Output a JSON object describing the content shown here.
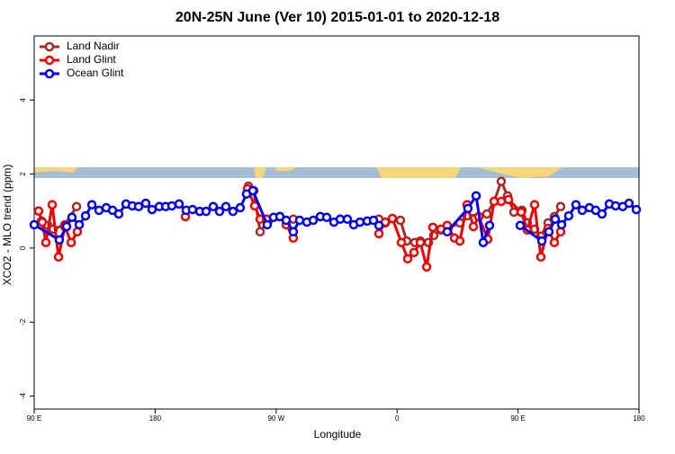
{
  "chart_data": {
    "type": "line",
    "title": "20N-25N June (Ver 10)   2015-01-01 to 2020-12-18",
    "xlabel": "Longitude",
    "ylabel": "XCO2 - MLO trend (ppm)",
    "xlim": [
      90,
      540
    ],
    "xticks": [
      {
        "value": 90,
        "label": "90 E"
      },
      {
        "value": 180,
        "label": "180"
      },
      {
        "value": 270,
        "label": "90 W"
      },
      {
        "value": 360,
        "label": "0"
      },
      {
        "value": 450,
        "label": "90 E"
      },
      {
        "value": 540,
        "label": "180"
      }
    ],
    "ylim": [
      -4.35,
      5.73
    ],
    "yticks": [
      -4,
      -2,
      0,
      2,
      4
    ],
    "legend": "top-left",
    "series": [
      {
        "name": "Land Nadir",
        "color": "#a52a2a",
        "x": [
          95.4,
          100.1,
          104.1,
          112.8,
          121.5,
          null,
          249.4,
          253.4,
          258.1,
          264.1,
          272.8,
          282.8,
          null,
          346.5,
          351.2,
          362.5,
          367.2,
          373.2,
          377.3,
          383.3,
          387.3,
          392.7,
          398,
          406.7,
          412.1,
          426.8,
          432.2,
          437.5,
          442.2,
          446.9,
          452.9,
          456.9,
          462.3,
          467,
          472.3,
          477,
          481.7
        ],
        "values": [
          0.73,
          0.61,
          0.51,
          0.63,
          1.12,
          null,
          1.67,
          1.55,
          0.44,
          0.73,
          0.85,
          0.78,
          null,
          0.78,
          0.68,
          0.75,
          0.19,
          0.15,
          0.19,
          0.15,
          0.34,
          0.49,
          0.53,
          0.68,
          0.87,
          0.92,
          1.26,
          1.8,
          1.41,
          0.97,
          1.02,
          0.68,
          0.51,
          0.32,
          0.68,
          0.85,
          1.12
        ]
      },
      {
        "name": "Land Glint",
        "color": "#ee0000",
        "x": [
          93.3,
          96,
          98.7,
          103.4,
          108.1,
          112.8,
          117.5,
          122.1,
          null,
          202.5,
          null,
          248.7,
          254.1,
          258.1,
          262.8,
          272.8,
          277.5,
          282.8,
          null,
          346.5,
          351.2,
          356.5,
          363.2,
          367.9,
          372.6,
          377.3,
          382,
          386.6,
          392.7,
          397.3,
          402.7,
          406.7,
          412.1,
          416.8,
          420.8,
          427.5,
          432.2,
          437.5,
          442.9,
          452.3,
          456.9,
          462.3,
          467,
          472.3,
          477,
          481.7
        ],
        "values": [
          1.0,
          0.7,
          0.15,
          1.17,
          -0.24,
          0.58,
          0.15,
          0.44,
          null,
          0.85,
          null,
          1.6,
          1.14,
          0.78,
          0.78,
          0.85,
          0.63,
          0.27,
          null,
          0.39,
          0.7,
          0.8,
          0.15,
          -0.29,
          -0.12,
          0.15,
          -0.51,
          0.56,
          0.51,
          0.61,
          0.27,
          0.19,
          1.17,
          0.58,
          0.85,
          0.24,
          1.26,
          1.26,
          1.31,
          0.97,
          0.49,
          1.17,
          -0.24,
          0.53,
          0.15,
          0.44
        ]
      },
      {
        "name": "Ocean Glint",
        "color": "#0000ee",
        "x": [
          90,
          108.7,
          114.1,
          118.1,
          123.5,
          128.2,
          132.9,
          138.2,
          143.6,
          148.3,
          152.9,
          158.3,
          163,
          167.7,
          173,
          177.7,
          183.1,
          187.8,
          192.4,
          197.8,
          203.1,
          207.8,
          213.2,
          217.9,
          223.2,
          227.9,
          232.6,
          237.9,
          243.3,
          248,
          252.7,
          263.4,
          268.1,
          272.8,
          277.5,
          282.8,
          287.5,
          292.9,
          297.6,
          302.9,
          307.6,
          313,
          317.7,
          323,
          327.7,
          332.4,
          337.8,
          342.4,
          346.5,
          null,
          397.3,
          412.7,
          418.8,
          424.1,
          428.8,
          null,
          451.6,
          467.7,
          473,
          477.7,
          482.4,
          487.7,
          493.1,
          497.8,
          503.1,
          507.8,
          512.5,
          517.9,
          522.6,
          527.9,
          532.6,
          538
        ],
        "values": [
          0.63,
          0.22,
          0.58,
          0.83,
          0.63,
          0.87,
          1.17,
          1.02,
          1.09,
          1.02,
          0.92,
          1.19,
          1.14,
          1.12,
          1.21,
          1.04,
          1.12,
          1.12,
          1.14,
          1.19,
          1.02,
          1.04,
          0.99,
          0.99,
          1.12,
          0.99,
          1.12,
          0.99,
          1.09,
          1.46,
          1.55,
          0.63,
          0.83,
          0.85,
          0.75,
          0.44,
          0.75,
          0.7,
          0.75,
          0.85,
          0.83,
          0.7,
          0.78,
          0.78,
          0.63,
          0.7,
          0.73,
          0.75,
          0.61,
          null,
          0.44,
          1.07,
          1.41,
          0.15,
          0.61,
          null,
          0.61,
          0.19,
          0.44,
          0.78,
          0.63,
          0.87,
          1.17,
          1.02,
          1.09,
          1.02,
          0.92,
          1.19,
          1.14,
          1.12,
          1.21,
          1.04
        ]
      }
    ]
  }
}
